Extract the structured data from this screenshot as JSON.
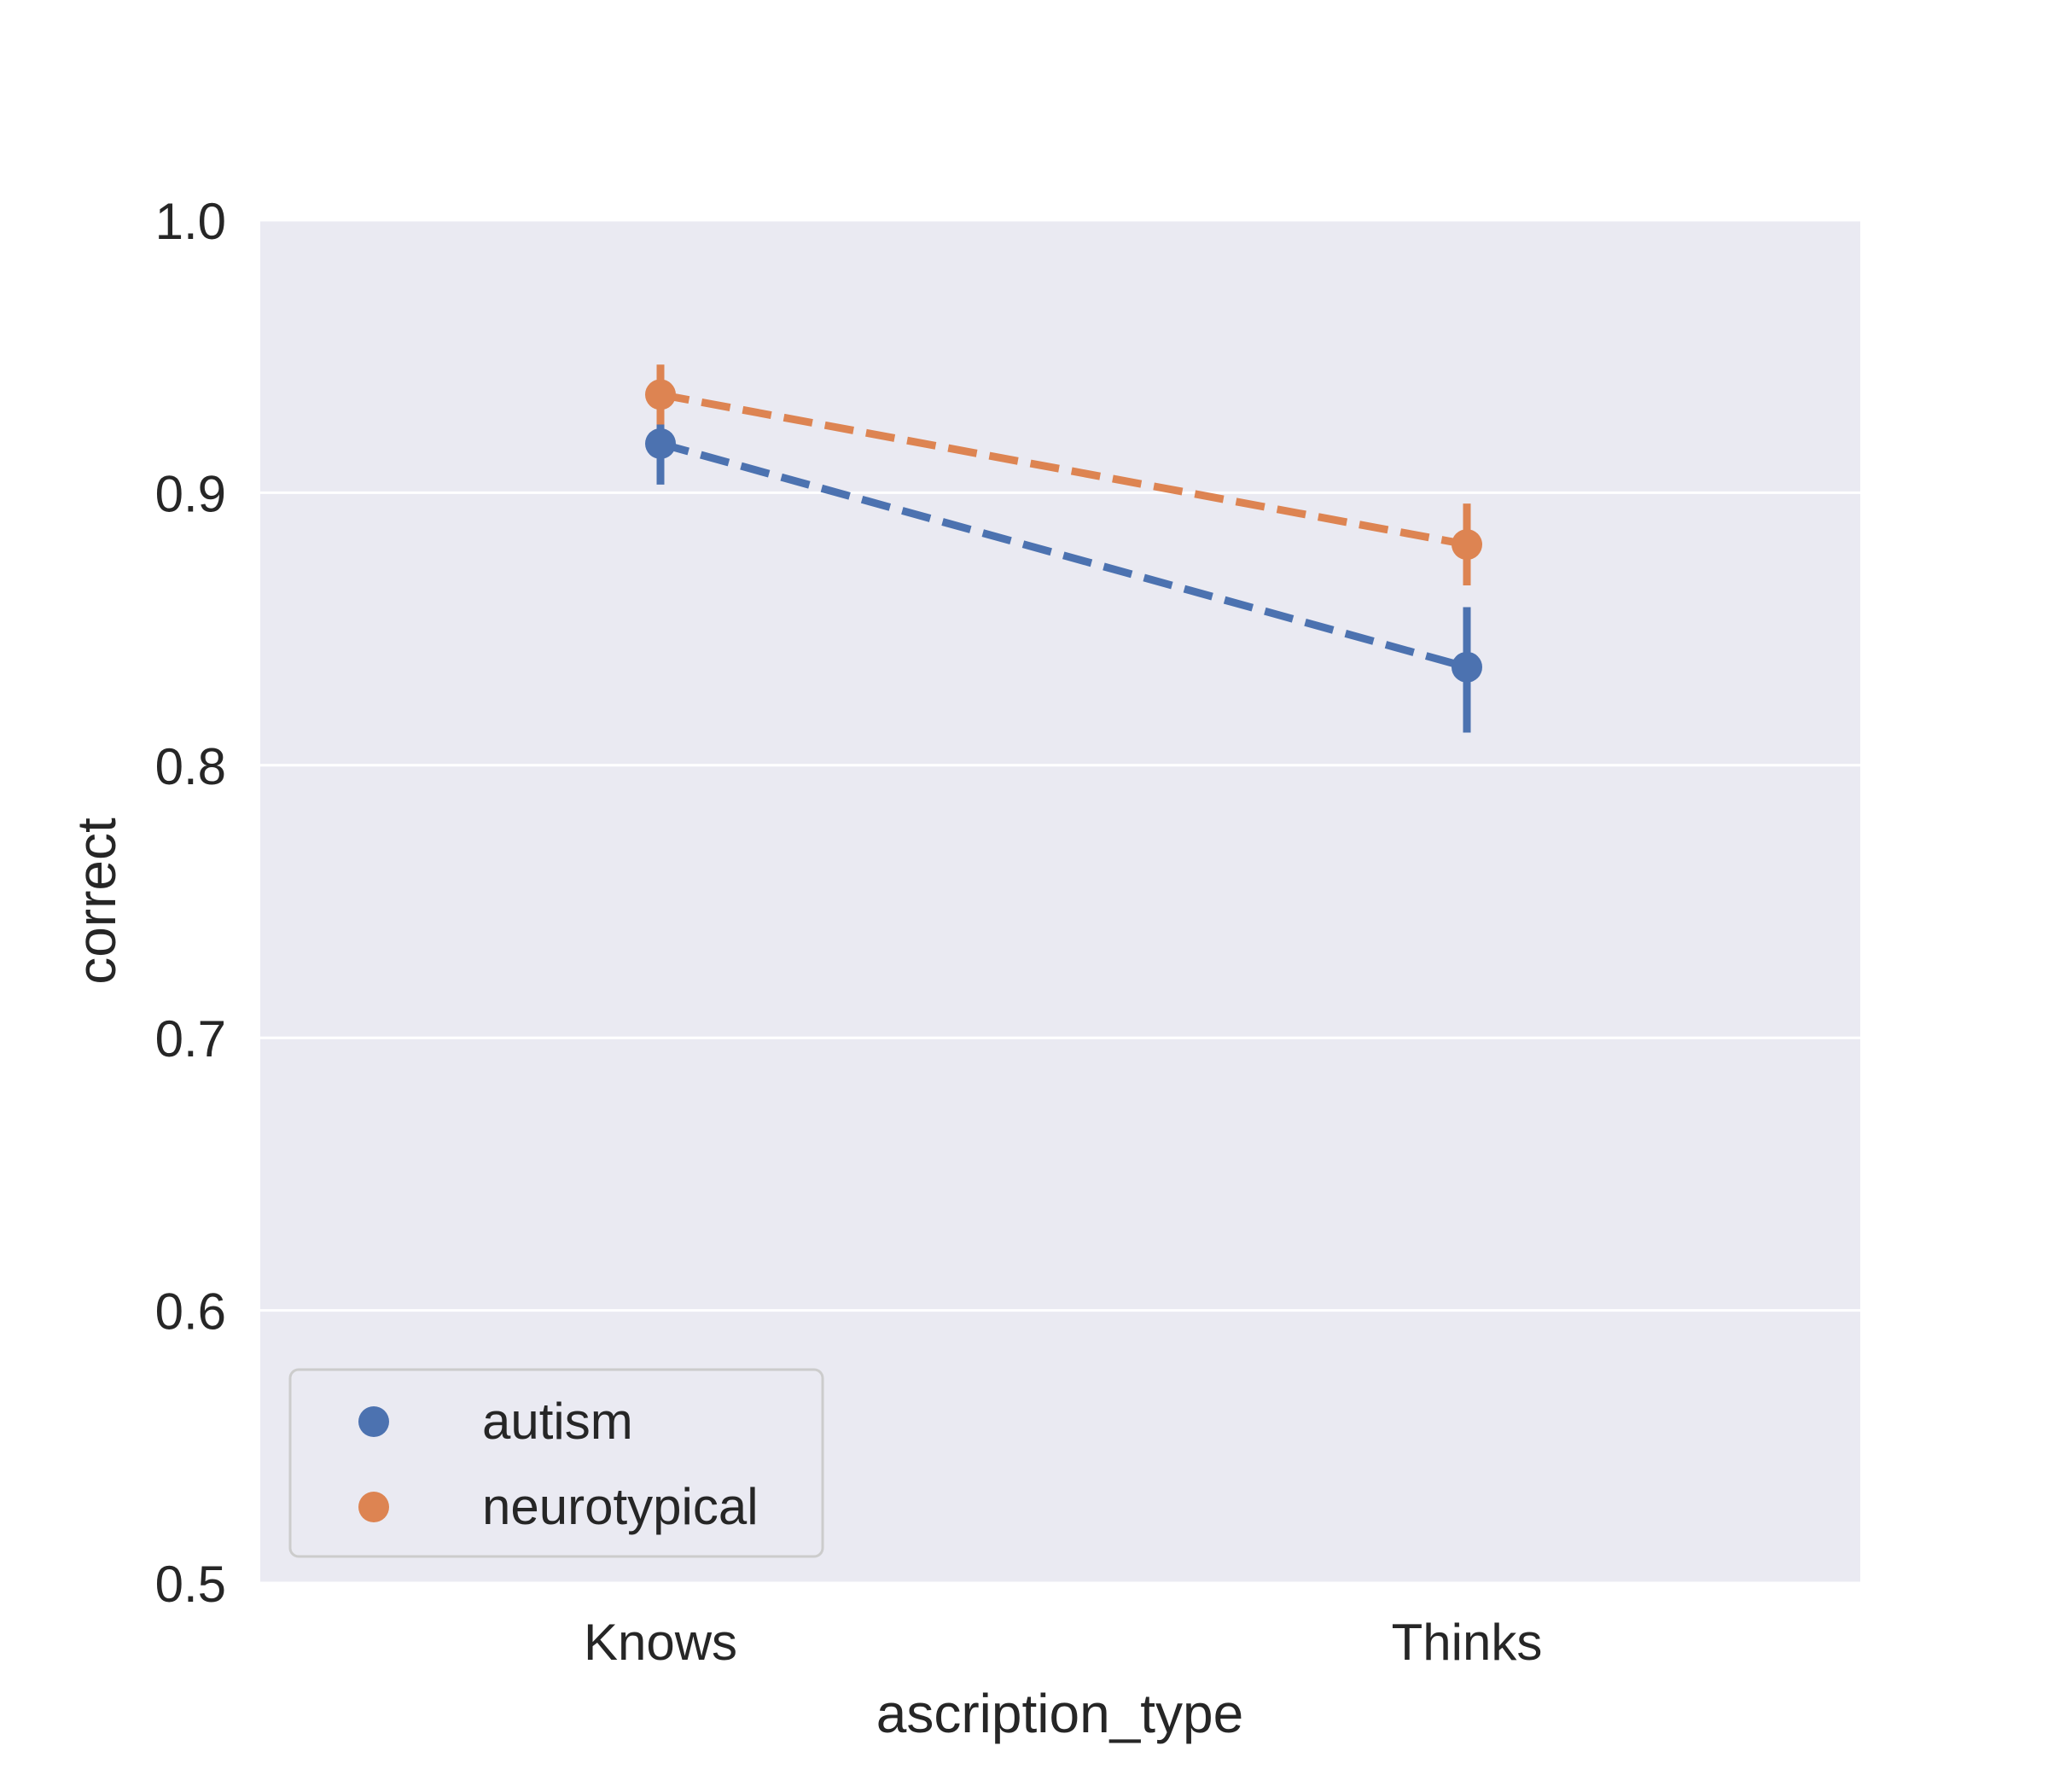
{
  "chart_data": {
    "type": "line",
    "xlabel": "ascription_type",
    "ylabel": "correct",
    "categories": [
      "Knows",
      "Thinks"
    ],
    "ylim": [
      0.5,
      1.0
    ],
    "yticks": [
      "0.5",
      "0.6",
      "0.7",
      "0.8",
      "0.9",
      "1.0"
    ],
    "grid": true,
    "legend_position": "lower-left",
    "line_style": "dashed",
    "series": [
      {
        "name": "autism",
        "color": "#4c72b0",
        "values": [
          0.918,
          0.836
        ],
        "ci_low": [
          0.903,
          0.812
        ],
        "ci_high": [
          0.935,
          0.858
        ]
      },
      {
        "name": "neurotypical",
        "color": "#dd8452",
        "values": [
          0.936,
          0.881
        ],
        "ci_low": [
          0.925,
          0.866
        ],
        "ci_high": [
          0.947,
          0.896
        ]
      }
    ]
  }
}
